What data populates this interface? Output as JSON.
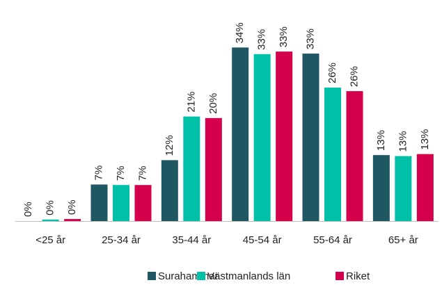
{
  "chart_data": {
    "type": "bar",
    "categories": [
      "<25 år",
      "25-34 år",
      "35-44 år",
      "45-54 år",
      "55-64 år",
      "65+ år"
    ],
    "series": [
      {
        "name": "Surahammar",
        "color": "#1f5763",
        "values": [
          0,
          7.2,
          12.0,
          34.2,
          33.0,
          13.0
        ],
        "value_labels": [
          "0%",
          "7%",
          "12%",
          "34%",
          "33%",
          "13%"
        ]
      },
      {
        "name": "Västmanlands län",
        "color": "#00c0a8",
        "values": [
          0.3,
          7.1,
          20.6,
          32.9,
          26.3,
          12.8
        ],
        "value_labels": [
          "0%",
          "7%",
          "21%",
          "33%",
          "26%",
          "13%"
        ]
      },
      {
        "name": "Riket",
        "color": "#d4004b",
        "values": [
          0.4,
          7.1,
          20.3,
          33.4,
          25.6,
          13.2
        ],
        "value_labels": [
          "0%",
          "7%",
          "20%",
          "33%",
          "26%",
          "13%"
        ]
      }
    ]
  }
}
